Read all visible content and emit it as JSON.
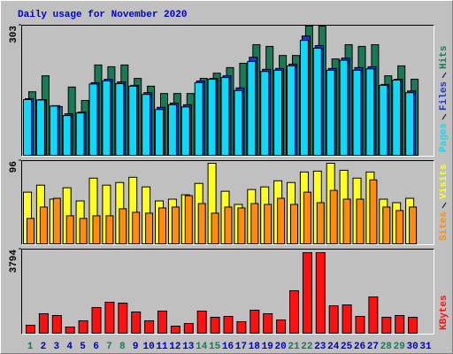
{
  "chart_data": [
    {
      "type": "bar",
      "title": "Daily usage for November 2020",
      "ylim": [
        0,
        303
      ],
      "yticks": [
        303
      ],
      "series": [
        {
          "name": "Hits",
          "color": "#1a7a56",
          "values": [
            149,
            186,
            115,
            160,
            129,
            211,
            207,
            211,
            180,
            162,
            145,
            145,
            145,
            180,
            192,
            205,
            215,
            258,
            254,
            233,
            233,
            301,
            301,
            225,
            258,
            254,
            258,
            186,
            209,
            178,
            null
          ]
        },
        {
          "name": "Files",
          "color": "#2034d0",
          "values": [
            133,
            131,
            117,
            98,
            102,
            170,
            178,
            172,
            164,
            147,
            113,
            123,
            119,
            174,
            180,
            186,
            158,
            229,
            201,
            203,
            213,
            278,
            256,
            203,
            227,
            205,
            207,
            166,
            178,
            151,
            null
          ]
        },
        {
          "name": "Pages",
          "color": "#10d8f8",
          "values": [
            131,
            130,
            116,
            94,
            100,
            167,
            174,
            168,
            162,
            143,
            108,
            119,
            114,
            170,
            178,
            182,
            152,
            219,
            196,
            199,
            209,
            268,
            250,
            199,
            222,
            199,
            202,
            164,
            176,
            147,
            null
          ]
        }
      ]
    },
    {
      "type": "bar",
      "ylim": [
        0,
        96
      ],
      "yticks": [
        96
      ],
      "series": [
        {
          "name": "Visits",
          "color": "#ffff20",
          "values": [
            60,
            68,
            52,
            65,
            50,
            76,
            68,
            71,
            77,
            66,
            50,
            52,
            57,
            70,
            93,
            61,
            46,
            63,
            66,
            73,
            71,
            83,
            84,
            93,
            85,
            76,
            83,
            52,
            48,
            53,
            null
          ]
        },
        {
          "name": "Sites",
          "color": "#ff8c10",
          "values": [
            30,
            43,
            53,
            33,
            30,
            33,
            33,
            41,
            37,
            36,
            42,
            43,
            56,
            47,
            36,
            43,
            42,
            47,
            46,
            53,
            46,
            60,
            48,
            62,
            52,
            52,
            74,
            43,
            39,
            43,
            null
          ]
        }
      ]
    },
    {
      "type": "bar",
      "ylim": [
        0,
        3794
      ],
      "yticks": [
        3794
      ],
      "categories": [
        "1",
        "2",
        "3",
        "4",
        "5",
        "6",
        "7",
        "8",
        "9",
        "10",
        "11",
        "12",
        "13",
        "14",
        "15",
        "16",
        "17",
        "18",
        "19",
        "20",
        "21",
        "22",
        "23",
        "24",
        "25",
        "26",
        "27",
        "28",
        "29",
        "30",
        "31"
      ],
      "category_colors": [
        "#1a7a56",
        "#0000c0",
        "#0000c0",
        "#0000c0",
        "#0000c0",
        "#0000c0",
        "#1a7a56",
        "#1a7a56",
        "#0000c0",
        "#0000c0",
        "#0000c0",
        "#0000c0",
        "#0000c0",
        "#1a7a56",
        "#1a7a56",
        "#0000c0",
        "#0000c0",
        "#0000c0",
        "#0000c0",
        "#0000c0",
        "#1a7a56",
        "#1a7a56",
        "#0000c0",
        "#0000c0",
        "#0000c0",
        "#0000c0",
        "#0000c0",
        "#1a7a56",
        "#1a7a56",
        "#0000c0",
        "#0000c0"
      ],
      "series": [
        {
          "name": "KBytes",
          "color": "#ff1010",
          "values": [
            395,
            909,
            830,
            316,
            593,
            1186,
            1423,
            1383,
            988,
            593,
            1028,
            356,
            474,
            1028,
            751,
            790,
            553,
            1067,
            909,
            632,
            1937,
            3636,
            3636,
            1265,
            1304,
            790,
            1660,
            751,
            830,
            751,
            null
          ]
        }
      ]
    }
  ]
}
